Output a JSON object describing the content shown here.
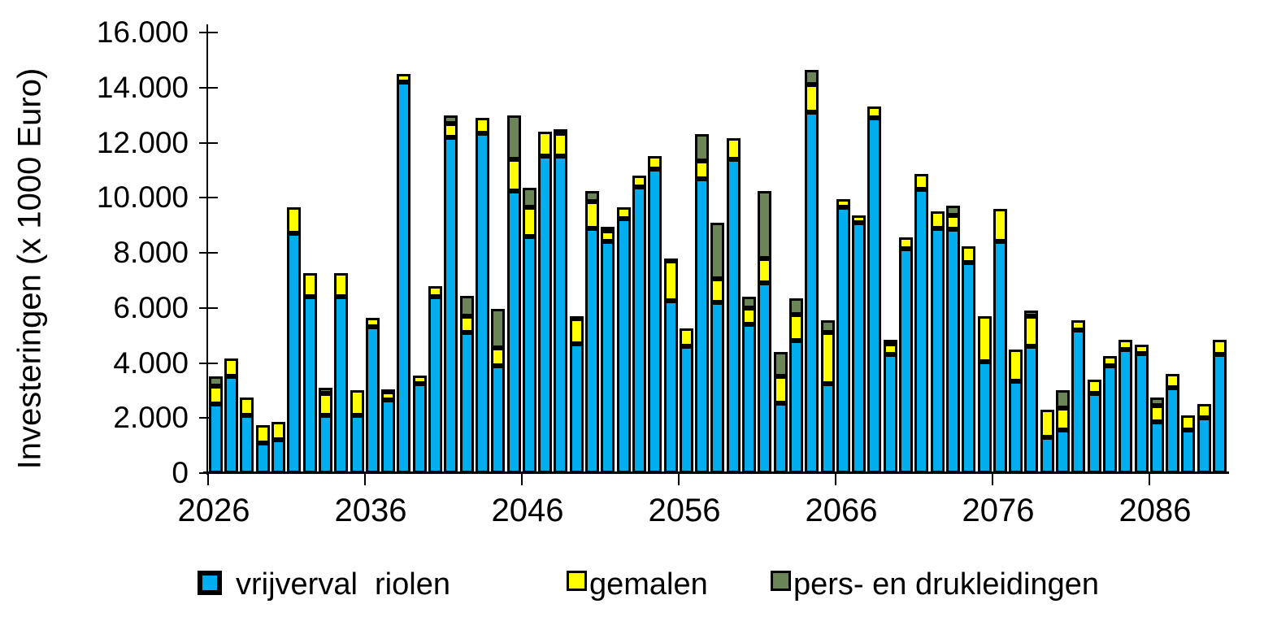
{
  "y_axis": {
    "title": "Investeringen  (x 1000 Euro)",
    "tick_values": [
      0,
      2000,
      4000,
      6000,
      8000,
      10000,
      12000,
      14000,
      16000
    ],
    "tick_labels": [
      "0",
      "2.000",
      "4.000",
      "6.000",
      "8.000",
      "10.000",
      "12.000",
      "14.000",
      "16.000"
    ]
  },
  "x_axis": {
    "tick_years": [
      2026,
      2036,
      2046,
      2056,
      2066,
      2076,
      2086
    ],
    "tick_labels": [
      "2026",
      "2036",
      "2046",
      "2056",
      "2066",
      "2076",
      "2086"
    ]
  },
  "legend": {
    "items": [
      {
        "label": "vrijverval  riolen",
        "color": "#00AEEF"
      },
      {
        "label": "gemalen",
        "color": "#FFFF00"
      },
      {
        "label": "pers- en drukleidingen",
        "color": "#6B8556"
      }
    ]
  },
  "chart_data": {
    "type": "bar",
    "stacked": true,
    "title": "",
    "xlabel": "",
    "ylabel": "Investeringen (x 1000 Euro)",
    "ylim": [
      0,
      16000
    ],
    "grid": false,
    "legend_position": "bottom",
    "x": [
      2026,
      2027,
      2028,
      2029,
      2030,
      2031,
      2032,
      2033,
      2034,
      2035,
      2036,
      2037,
      2038,
      2039,
      2040,
      2041,
      2042,
      2043,
      2044,
      2045,
      2046,
      2047,
      2048,
      2049,
      2050,
      2051,
      2052,
      2053,
      2054,
      2055,
      2056,
      2057,
      2058,
      2059,
      2060,
      2061,
      2062,
      2063,
      2064,
      2065,
      2066,
      2067,
      2068,
      2069,
      2070,
      2071,
      2072,
      2073,
      2074,
      2075,
      2076,
      2077,
      2078,
      2079,
      2080,
      2081,
      2082,
      2083,
      2084,
      2085,
      2086,
      2087,
      2088,
      2089,
      2090
    ],
    "series": [
      {
        "name": "vrijverval riolen",
        "color": "#00AEEF",
        "values": [
          2500,
          3500,
          2100,
          1100,
          1200,
          8700,
          6400,
          2100,
          6400,
          2100,
          5300,
          2650,
          14200,
          3250,
          6400,
          12200,
          5100,
          12350,
          3900,
          10250,
          8600,
          11500,
          11500,
          4700,
          8900,
          8400,
          9250,
          10400,
          11050,
          6250,
          4600,
          10700,
          6200,
          11400,
          5400,
          6900,
          2550,
          4800,
          13100,
          3250,
          9650,
          9100,
          12900,
          4300,
          8150,
          10300,
          8900,
          8850,
          7650,
          4050,
          8400,
          3350,
          4600,
          1300,
          1550,
          5200,
          2900,
          3900,
          4500,
          4350,
          1850,
          3100,
          1550,
          2000,
          4300
        ]
      },
      {
        "name": "gemalen",
        "color": "#FFFF00",
        "values": [
          650,
          650,
          650,
          650,
          650,
          950,
          850,
          800,
          850,
          900,
          350,
          300,
          300,
          300,
          400,
          500,
          600,
          550,
          650,
          1150,
          1050,
          900,
          850,
          900,
          950,
          400,
          400,
          400,
          450,
          1450,
          650,
          650,
          850,
          750,
          600,
          900,
          950,
          950,
          1000,
          1850,
          300,
          250,
          400,
          400,
          400,
          550,
          600,
          500,
          600,
          1650,
          1200,
          1150,
          1100,
          1000,
          800,
          350,
          500,
          350,
          350,
          300,
          600,
          500,
          550,
          500,
          550
        ]
      },
      {
        "name": "pers- en drukleidingen",
        "color": "#6B8556",
        "values": [
          350,
          0,
          0,
          0,
          0,
          0,
          0,
          200,
          0,
          0,
          0,
          100,
          0,
          0,
          0,
          300,
          750,
          0,
          1400,
          1600,
          700,
          0,
          150,
          100,
          400,
          150,
          0,
          0,
          0,
          100,
          0,
          950,
          2050,
          0,
          400,
          2450,
          900,
          600,
          550,
          450,
          0,
          0,
          0,
          150,
          0,
          0,
          0,
          350,
          0,
          0,
          0,
          0,
          200,
          0,
          650,
          0,
          0,
          0,
          0,
          0,
          300,
          0,
          0,
          0,
          0
        ]
      }
    ]
  }
}
